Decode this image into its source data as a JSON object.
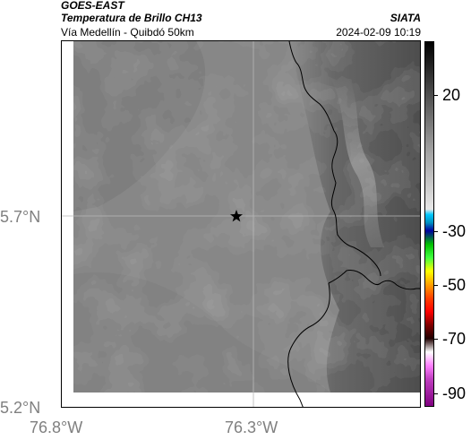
{
  "header": {
    "title": "GOES-EAST",
    "subtitle": "Temperatura de Brillo CH13",
    "route": "Vía Medellín - Quibdó 50km",
    "organization": "SIATA",
    "timestamp": "2024-02-09 10:19"
  },
  "map": {
    "latitude_labels": [
      "5.7°N",
      "5.2°N"
    ],
    "longitude_labels": [
      "76.8°W",
      "76.3°W"
    ],
    "marker_icon": "star-icon",
    "colors": {
      "background_gray": "#888888",
      "cloud_gray": "#4a4a4a",
      "gridline": "#b8b8b8",
      "border_line": "#000000"
    }
  },
  "colorbar": {
    "labels": [
      "20",
      "-30",
      "-50",
      "-70",
      "-90"
    ],
    "label_values": [
      20,
      -30,
      -50,
      -70,
      -90
    ],
    "range": [
      -95,
      40
    ]
  }
}
